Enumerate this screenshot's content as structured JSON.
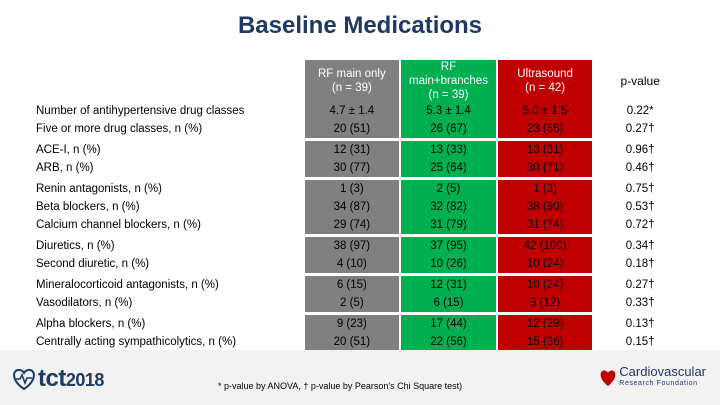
{
  "title": "Baseline Medications",
  "table": {
    "columns": [
      {
        "line1": "RF main only",
        "line2": "(n = 39)",
        "color": "#808080"
      },
      {
        "line1": "RF main+branches",
        "line2": "(n = 39)",
        "color": "#00b050"
      },
      {
        "line1": "Ultrasound",
        "line2": "(n = 42)",
        "color": "#c00000"
      }
    ],
    "pvalue_header": "p-value",
    "rows": [
      {
        "label": "Number of antihypertensive drug classes",
        "values": [
          "4.7 ± 1.4",
          "5.3 ± 1.4",
          "5.0 ± 1.5"
        ],
        "p": "0.22*"
      },
      {
        "label": "Five or more drug classes, n (%)",
        "values": [
          "20 (51)",
          "26 (67)",
          "23 (55)"
        ],
        "p": "0.27†"
      },
      {
        "label": "ACE-I, n (%)",
        "values": [
          "12 (31)",
          "13 (33)",
          "13 (31)"
        ],
        "p": "0.96†"
      },
      {
        "label": "ARB, n (%)",
        "values": [
          "30 (77)",
          "25 (64)",
          "30 (71)"
        ],
        "p": "0.46†"
      },
      {
        "label": "Renin antagonists, n (%)",
        "values": [
          "1 (3)",
          "2 (5)",
          "1 (3)"
        ],
        "p": "0.75†"
      },
      {
        "label": "Beta blockers, n (%)",
        "values": [
          "34 (87)",
          "32 (82)",
          "38 (90)"
        ],
        "p": "0.53†"
      },
      {
        "label": "Calcium channel blockers, n (%)",
        "values": [
          "29 (74)",
          "31 (79)",
          "31 (74)"
        ],
        "p": "0.72†"
      },
      {
        "label": "Diuretics, n (%)",
        "values": [
          "38 (97)",
          "37 (95)",
          "42 (100)"
        ],
        "p": "0.34†"
      },
      {
        "label": "Second diuretic, n (%)",
        "values": [
          "4 (10)",
          "10 (26)",
          "10 (24)"
        ],
        "p": "0.18†"
      },
      {
        "label": "Mineralocorticoid antagonists, n (%)",
        "values": [
          "6 (15)",
          "12 (31)",
          "10 (24)"
        ],
        "p": "0.27†"
      },
      {
        "label": "Vasodilators, n (%)",
        "values": [
          "2 (5)",
          "6 (15)",
          "5 (12)"
        ],
        "p": "0.33†"
      },
      {
        "label": "Alpha blockers, n (%)",
        "values": [
          "9 (23)",
          "17 (44)",
          "12 (29)"
        ],
        "p": "0.13†"
      },
      {
        "label": "Centrally acting sympathicolytics, n (%)",
        "values": [
          "20 (51)",
          "22 (56)",
          "15 (36)"
        ],
        "p": "0.15†"
      }
    ]
  },
  "footnote": "* p-value by ANOVA, † p-value by Pearson's Chi Square test)",
  "logo_left": {
    "brand": "tct",
    "year": "2018"
  },
  "logo_right": {
    "line1": "Cardiovascular",
    "line2": "Research Foundation"
  }
}
